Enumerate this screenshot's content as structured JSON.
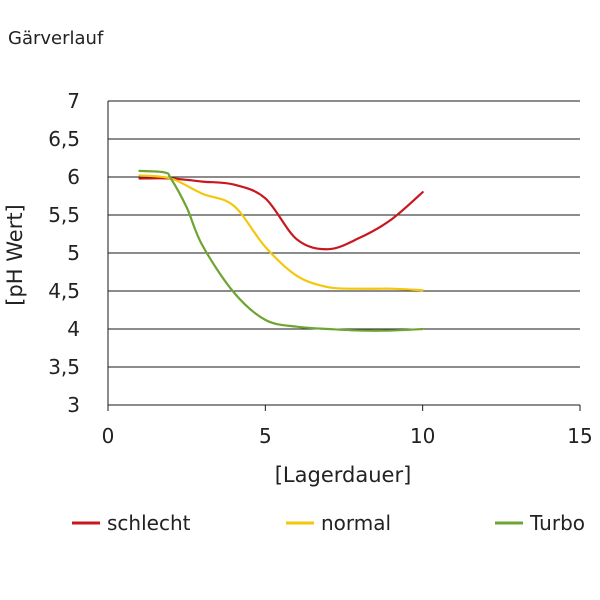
{
  "chart_data": {
    "type": "line",
    "title": "Gärverlauf",
    "xlabel": "[Lagerdauer]",
    "ylabel": "[pH Wert]",
    "xlim": [
      0,
      15
    ],
    "ylim": [
      3,
      7
    ],
    "xticks": [
      0,
      5,
      10,
      15
    ],
    "yticks": [
      3,
      3.5,
      4,
      4.5,
      5,
      5.5,
      6,
      6.5,
      7
    ],
    "xtick_labels": [
      "0",
      "5",
      "10",
      "15"
    ],
    "ytick_labels": [
      "3",
      "3,5",
      "4",
      "4,5",
      "5",
      "5,5",
      "6",
      "6,5",
      "7"
    ],
    "grid": "horizontal",
    "legend_position": "bottom",
    "series": [
      {
        "name": "schlecht",
        "color": "#c8171e",
        "points": [
          [
            1.0,
            5.98
          ],
          [
            2.0,
            5.98
          ],
          [
            3.0,
            5.94
          ],
          [
            4.0,
            5.9
          ],
          [
            5.0,
            5.72
          ],
          [
            6.0,
            5.18
          ],
          [
            7.0,
            5.05
          ],
          [
            8.0,
            5.2
          ],
          [
            9.0,
            5.44
          ],
          [
            10.0,
            5.8
          ]
        ]
      },
      {
        "name": "normal",
        "color": "#f5c70c",
        "points": [
          [
            1.0,
            6.02
          ],
          [
            2.0,
            5.98
          ],
          [
            3.0,
            5.78
          ],
          [
            4.0,
            5.62
          ],
          [
            5.0,
            5.08
          ],
          [
            6.0,
            4.7
          ],
          [
            7.0,
            4.55
          ],
          [
            8.0,
            4.53
          ],
          [
            9.0,
            4.53
          ],
          [
            10.0,
            4.51
          ]
        ]
      },
      {
        "name": "Turbo",
        "color": "#6ea432",
        "points": [
          [
            1.0,
            6.08
          ],
          [
            1.8,
            6.06
          ],
          [
            2.0,
            5.98
          ],
          [
            2.5,
            5.6
          ],
          [
            3.0,
            5.1
          ],
          [
            4.0,
            4.48
          ],
          [
            5.0,
            4.12
          ],
          [
            6.0,
            4.03
          ],
          [
            7.0,
            4.0
          ],
          [
            8.0,
            3.98
          ],
          [
            9.0,
            3.98
          ],
          [
            10.0,
            4.0
          ]
        ]
      }
    ]
  }
}
